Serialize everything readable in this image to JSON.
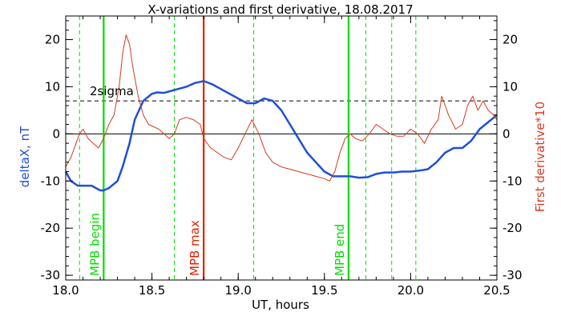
{
  "chart_data": {
    "type": "line",
    "title": "X-variations and first derivative, 18.08.2017",
    "xlabel": "UT, hours",
    "ylabel_left": "deltaX, nT",
    "ylabel_right": "First derivative*10",
    "xlim": [
      18.0,
      20.5
    ],
    "ylim": [
      -31,
      25
    ],
    "x_ticks": [
      "18.0",
      "18.5",
      "19.0",
      "19.5",
      "20.0",
      "20.5"
    ],
    "y_ticks": [
      "-30",
      "-20",
      "-10",
      "0",
      "10",
      "20"
    ],
    "grid": false,
    "series": [
      {
        "name": "deltaX, nT",
        "color": "#1f4fd6",
        "x": [
          18.0,
          18.03,
          18.07,
          18.1,
          18.15,
          18.2,
          18.22,
          18.25,
          18.3,
          18.33,
          18.37,
          18.4,
          18.45,
          18.5,
          18.53,
          18.57,
          18.6,
          18.65,
          18.7,
          18.75,
          18.8,
          18.85,
          18.9,
          18.95,
          19.0,
          19.05,
          19.1,
          19.15,
          19.2,
          19.25,
          19.3,
          19.35,
          19.4,
          19.45,
          19.5,
          19.55,
          19.6,
          19.65,
          19.7,
          19.75,
          19.8,
          19.85,
          19.9,
          19.95,
          20.0,
          20.05,
          20.1,
          20.15,
          20.2,
          20.25,
          20.3,
          20.35,
          20.4,
          20.45,
          20.5
        ],
        "y": [
          -8,
          -10,
          -11,
          -11,
          -11,
          -12,
          -12,
          -11.5,
          -10,
          -7,
          -2,
          3,
          7,
          8.5,
          8.8,
          8.7,
          9,
          9.5,
          10,
          10.8,
          11.2,
          10.5,
          9.5,
          8.5,
          7.5,
          6.5,
          6.5,
          7.5,
          7,
          5,
          2,
          -1,
          -4,
          -6,
          -8,
          -9,
          -9,
          -9,
          -9.3,
          -9.2,
          -8.5,
          -8.2,
          -8.2,
          -8,
          -8,
          -7.8,
          -7.5,
          -6,
          -4,
          -3,
          -3,
          -1.5,
          1,
          2.5,
          4
        ]
      },
      {
        "name": "First derivative*10",
        "color": "#d63a1f",
        "x": [
          18.0,
          18.03,
          18.06,
          18.08,
          18.1,
          18.13,
          18.16,
          18.19,
          18.22,
          18.25,
          18.28,
          18.31,
          18.33,
          18.35,
          18.37,
          18.39,
          18.42,
          18.45,
          18.48,
          18.51,
          18.54,
          18.57,
          18.6,
          18.63,
          18.66,
          18.7,
          18.74,
          18.78,
          18.8,
          18.84,
          18.88,
          18.92,
          18.96,
          19.0,
          19.04,
          19.08,
          19.12,
          19.16,
          19.2,
          19.25,
          19.3,
          19.35,
          19.4,
          19.45,
          19.5,
          19.53,
          19.56,
          19.59,
          19.62,
          19.65,
          19.68,
          19.72,
          19.76,
          19.8,
          19.84,
          19.88,
          19.92,
          19.96,
          20.0,
          20.04,
          20.08,
          20.12,
          20.16,
          20.18,
          20.22,
          20.26,
          20.3,
          20.33,
          20.36,
          20.39,
          20.42,
          20.45,
          20.48,
          20.5
        ],
        "y": [
          -7,
          -5,
          -2,
          0,
          1,
          -1,
          -2,
          -3,
          -1,
          2,
          4,
          10,
          17,
          21,
          19,
          14,
          8,
          4,
          2,
          1.5,
          1,
          0,
          -1,
          0,
          3,
          3.5,
          3,
          2,
          -1,
          -3,
          -4,
          -5,
          -5.5,
          -3,
          0,
          3,
          0,
          -4,
          -6,
          -7,
          -7.5,
          -8,
          -8.5,
          -9,
          -9.5,
          -10,
          -8,
          -4,
          -1,
          0,
          -1,
          -1.5,
          0,
          2,
          1,
          0,
          -0.5,
          -0.5,
          1,
          0,
          -2,
          1,
          3,
          8,
          4,
          1,
          2,
          6,
          8,
          5,
          7,
          5,
          4,
          3
        ]
      }
    ],
    "threshold": {
      "label": "2sigma",
      "y": 7
    },
    "vertical_lines": [
      {
        "x": 18.22,
        "label": "MPB begin",
        "color": "#00dd00",
        "style": "solid"
      },
      {
        "x": 18.8,
        "label": "MPB max",
        "color": "#e02000",
        "style": "solid"
      },
      {
        "x": 19.64,
        "label": "MPB end",
        "color": "#00dd00",
        "style": "solid"
      },
      {
        "x": 18.08,
        "label": "",
        "color": "#00dd00",
        "style": "dashed"
      },
      {
        "x": 18.63,
        "label": "",
        "color": "#00dd00",
        "style": "dashed"
      },
      {
        "x": 19.09,
        "label": "",
        "color": "#00dd00",
        "style": "dashed"
      },
      {
        "x": 19.74,
        "label": "",
        "color": "#00dd00",
        "style": "dashed"
      },
      {
        "x": 19.89,
        "label": "",
        "color": "#00dd00",
        "style": "dashed"
      },
      {
        "x": 20.03,
        "label": "",
        "color": "#00dd00",
        "style": "dashed"
      }
    ]
  }
}
